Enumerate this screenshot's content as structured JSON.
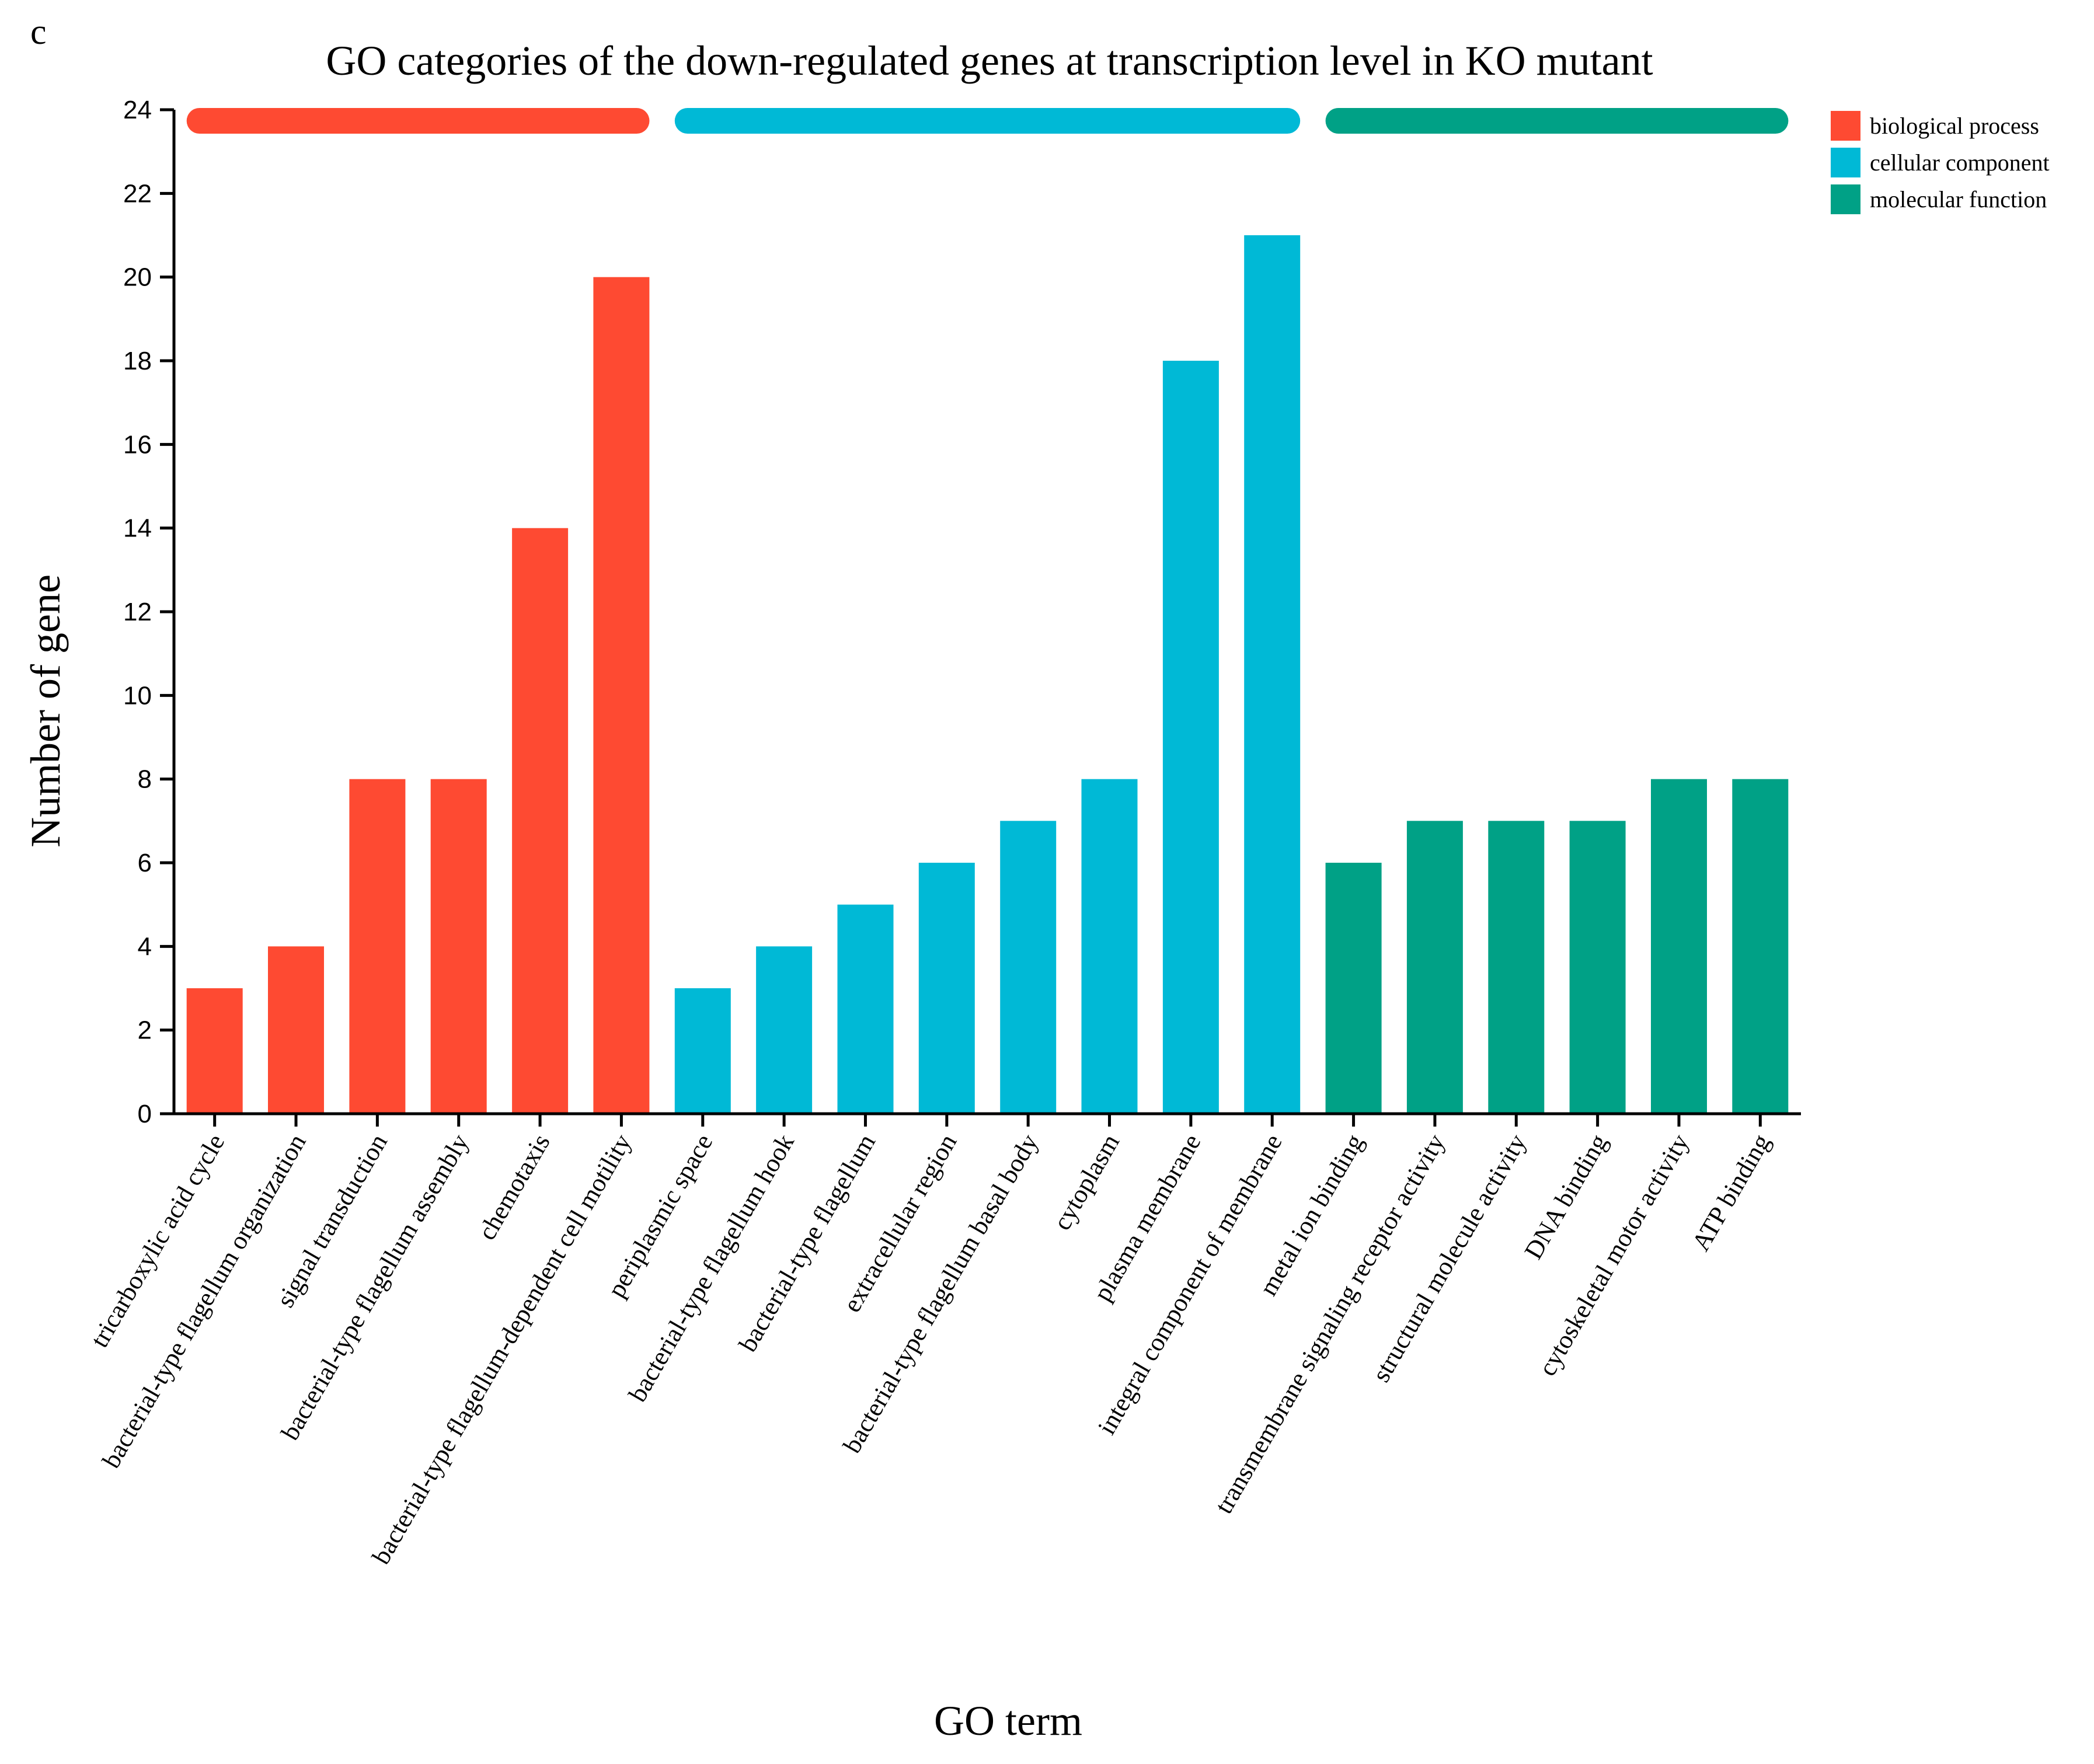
{
  "panel_label": "c",
  "chart_data": {
    "type": "bar",
    "title": "GO categories of the down-regulated genes at transcription level in KO mutant",
    "xlabel": "GO term",
    "ylabel": "Number of gene",
    "ylim": [
      0,
      24
    ],
    "yticks": [
      0,
      2,
      4,
      6,
      8,
      10,
      12,
      14,
      16,
      18,
      20,
      22,
      24
    ],
    "grid": false,
    "legend_position": "top-right",
    "categories": [
      "tricarboxylic acid cycle",
      "bacterial-type flagellum organization",
      "signal transduction",
      "bacterial-type flagellum assembly",
      "chemotaxis",
      "bacterial-type flagellum-dependent cell motility",
      "periplasmic space",
      "bacterial-type flagellum hook",
      "bacterial-type flagellum",
      "extracellular region",
      "bacterial-type flagellum basal body",
      "cytoplasm",
      "plasma membrane",
      "integral component of membrane",
      "metal ion binding",
      "transmembrane signaling receptor activity",
      "structural molecule activity",
      "DNA binding",
      "cytoskeletal motor activity",
      "ATP binding"
    ],
    "values": [
      3,
      4,
      8,
      8,
      14,
      20,
      3,
      4,
      5,
      6,
      7,
      8,
      18,
      21,
      6,
      7,
      7,
      7,
      8,
      8
    ],
    "groups": [
      {
        "name": "biological process",
        "color": "#fe4a32",
        "start": 0,
        "end": 5
      },
      {
        "name": "cellular component",
        "color": "#00b9d6",
        "start": 6,
        "end": 13
      },
      {
        "name": "molecular function",
        "color": "#00a186",
        "start": 14,
        "end": 19
      }
    ]
  }
}
